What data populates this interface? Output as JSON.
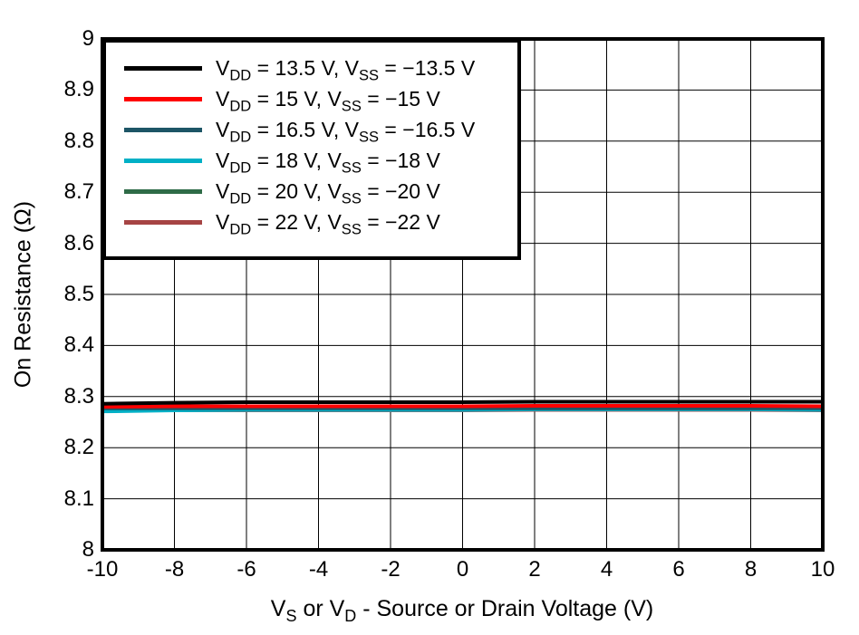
{
  "chart_data": {
    "type": "line",
    "title": "",
    "xlabel": "V_{S} or V_{D} - Source or Drain Voltage (V)",
    "ylabel": "On Resistance (Ω)",
    "xlim": [
      -10,
      10
    ],
    "ylim": [
      8,
      9
    ],
    "grid": true,
    "legend_position": "top-left",
    "frame_color": "#000000",
    "grid_color": "#000000",
    "x_ticks": [
      -10,
      -8,
      -6,
      -4,
      -2,
      0,
      2,
      4,
      6,
      8,
      10
    ],
    "x_tick_labels": [
      "-10",
      "-8",
      "-6",
      "-4",
      "-2",
      "0",
      "2",
      "4",
      "6",
      "8",
      "10"
    ],
    "y_ticks": [
      8,
      8.1,
      8.2,
      8.3,
      8.4,
      8.5,
      8.6,
      8.7,
      8.8,
      8.9,
      9
    ],
    "y_tick_labels": [
      "8",
      "8.1",
      "8.2",
      "8.3",
      "8.4",
      "8.5",
      "8.6",
      "8.7",
      "8.8",
      "8.9",
      "9"
    ],
    "x": [
      -10,
      -8,
      -6,
      -4,
      -2,
      0,
      2,
      4,
      6,
      8,
      10
    ],
    "series": [
      {
        "label": "V_{DD} = 13.5 V, V_{SS} = −13.5 V",
        "color": "#000000",
        "values": [
          8.286,
          8.288,
          8.289,
          8.289,
          8.289,
          8.289,
          8.29,
          8.29,
          8.29,
          8.29,
          8.29
        ]
      },
      {
        "label": "V_{DD} = 15 V, V_{SS} = −15 V",
        "color": "#ff0000",
        "values": [
          8.28,
          8.281,
          8.281,
          8.281,
          8.281,
          8.281,
          8.282,
          8.282,
          8.282,
          8.282,
          8.281
        ]
      },
      {
        "label": "V_{DD} = 16.5 V, V_{SS} = −16.5 V",
        "color": "#1d5566",
        "values": [
          8.277,
          8.277,
          8.277,
          8.277,
          8.277,
          8.277,
          8.277,
          8.277,
          8.277,
          8.277,
          8.277
        ]
      },
      {
        "label": "V_{DD} = 18 V, V_{SS} = −18 V",
        "color": "#00b0c6",
        "values": [
          8.271,
          8.273,
          8.274,
          8.274,
          8.274,
          8.274,
          8.275,
          8.275,
          8.275,
          8.275,
          8.274
        ]
      },
      {
        "label": "V_{DD} = 20 V, V_{SS} = −20 V",
        "color": "#2e6b47",
        "values": [
          8.276,
          8.276,
          8.276,
          8.276,
          8.276,
          8.276,
          8.276,
          8.276,
          8.276,
          8.276,
          8.276
        ]
      },
      {
        "label": "V_{DD} = 22 V, V_{SS} = −22 V",
        "color": "#a64444",
        "values": [
          8.273,
          8.273,
          8.273,
          8.273,
          8.273,
          8.273,
          8.274,
          8.274,
          8.274,
          8.274,
          8.273
        ]
      }
    ]
  }
}
